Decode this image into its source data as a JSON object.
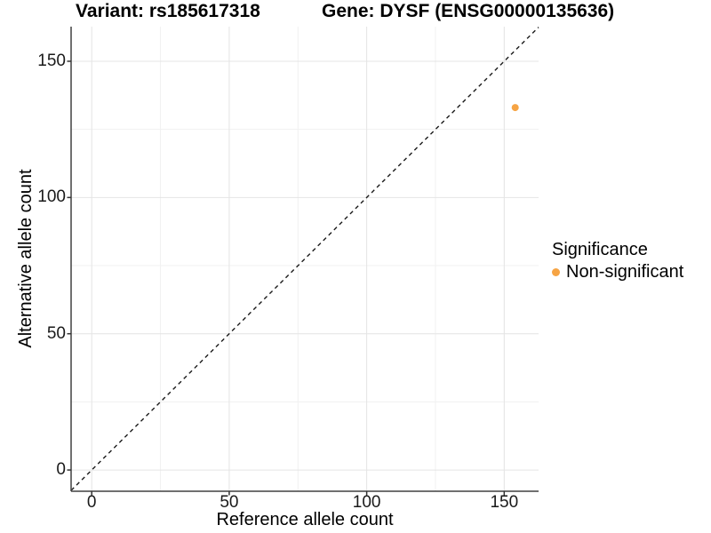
{
  "titles": {
    "left": "Variant: rs185617318",
    "right": "Gene: DYSF (ENSG00000135636)"
  },
  "chart_data": {
    "type": "scatter",
    "title": "Variant: rs185617318    Gene: DYSF (ENSG00000135636)",
    "xlabel": "Reference allele count",
    "ylabel": "Alternative allele count",
    "xlim": [
      -7.5,
      162.5
    ],
    "ylim": [
      -7.8,
      162.7
    ],
    "x_ticks": [
      0,
      50,
      100,
      150
    ],
    "y_ticks": [
      0,
      50,
      100,
      150
    ],
    "x_minor_ticks": [
      25,
      75,
      125
    ],
    "y_minor_ticks": [
      25,
      75,
      125
    ],
    "grid": "major and minor gridlines on white background",
    "identity_line": {
      "slope": 1,
      "intercept": 0,
      "style": "dashed",
      "color": "#1a1a1a"
    },
    "points": [
      {
        "x": 154,
        "y": 133,
        "significance": "Non-significant",
        "color": "#F6A444",
        "radius": 4
      }
    ],
    "legend": {
      "title": "Significance",
      "position": "right",
      "items": [
        {
          "label": "Non-significant",
          "color": "#F6A444"
        }
      ]
    }
  },
  "colors": {
    "background": "#ffffff",
    "grid_major": "#e4e4e4",
    "grid_minor": "#f1f1f1",
    "axis_line": "#404040",
    "tick_mark": "#333333",
    "tick_text": "#1a1a1a",
    "point": "#F6A444"
  }
}
